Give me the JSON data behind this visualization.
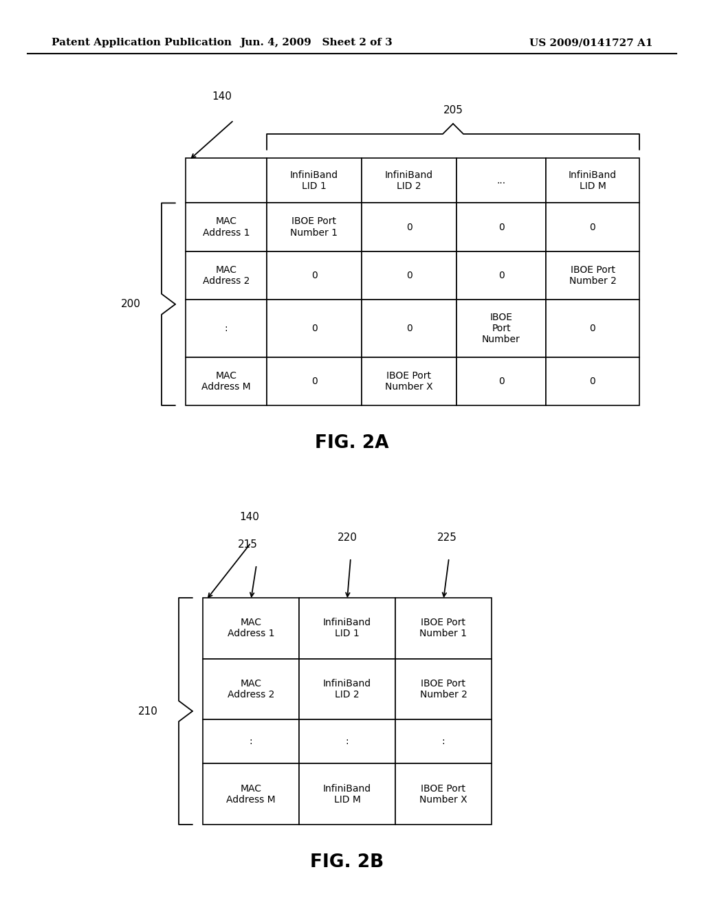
{
  "header": {
    "left": "Patent Application Publication",
    "center": "Jun. 4, 2009   Sheet 2 of 3",
    "right": "US 2009/0141727 A1"
  },
  "fig2a": {
    "title": "FIG. 2A",
    "col_headers": [
      "",
      "InfiniBand\nLID 1",
      "InfiniBand\nLID 2",
      "...",
      "InfiniBand\nLID M"
    ],
    "rows": [
      [
        "MAC\nAddress 1",
        "IBOE Port\nNumber 1",
        "0",
        "0",
        "0"
      ],
      [
        "MAC\nAddress 2",
        "0",
        "0",
        "0",
        "IBOE Port\nNumber 2"
      ],
      [
        ":",
        "0",
        "0",
        "IBOE\nPort\nNumber",
        "0"
      ],
      [
        "MAC\nAddress M",
        "0",
        "IBOE Port\nNumber X",
        "0",
        "0"
      ]
    ]
  },
  "fig2b": {
    "title": "FIG. 2B",
    "rows": [
      [
        "MAC\nAddress 1",
        "InfiniBand\nLID 1",
        "IBOE Port\nNumber 1"
      ],
      [
        "MAC\nAddress 2",
        "InfiniBand\nLID 2",
        "IBOE Port\nNumber 2"
      ],
      [
        ":",
        ":",
        ":"
      ],
      [
        "MAC\nAddress M",
        "InfiniBand\nLID M",
        "IBOE Port\nNumber X"
      ]
    ]
  },
  "bg_color": "#ffffff",
  "text_color": "#000000",
  "line_color": "#000000"
}
